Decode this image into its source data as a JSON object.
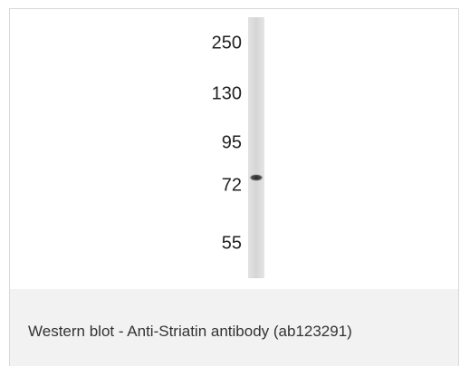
{
  "blot": {
    "markers": [
      "250",
      "130",
      "95",
      "72",
      "55"
    ]
  },
  "caption": "Western blot - Anti-Striatin antibody (ab123291)"
}
